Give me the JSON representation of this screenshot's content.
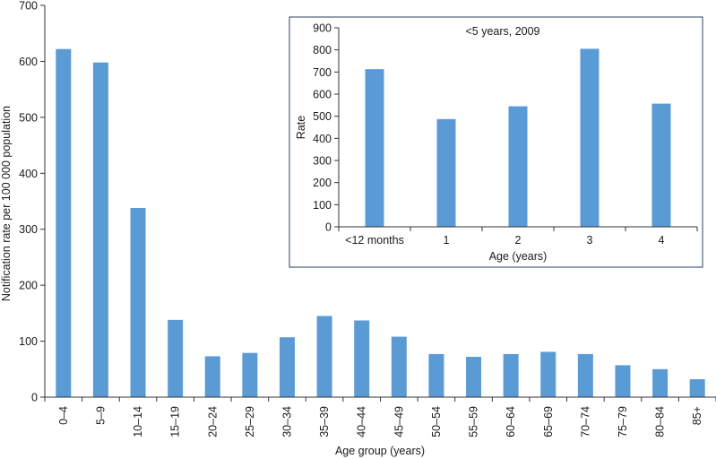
{
  "chart_data": [
    {
      "type": "bar",
      "title": "",
      "xlabel": "Age group (years)",
      "ylabel": "Notification rate per 100 000 population",
      "ylim": [
        0,
        700
      ],
      "yticks": [
        0,
        100,
        200,
        300,
        400,
        500,
        600,
        700
      ],
      "grid": false,
      "color": "#5b9bd5",
      "categories": [
        "0–4",
        "5–9",
        "10–14",
        "15–19",
        "20–24",
        "25–29",
        "30–34",
        "35–39",
        "40–44",
        "45–49",
        "50–54",
        "55–59",
        "60–64",
        "65–69",
        "70–74",
        "75–79",
        "80–84",
        "85+"
      ],
      "values": [
        622,
        598,
        338,
        138,
        73,
        79,
        107,
        145,
        137,
        108,
        77,
        72,
        77,
        81,
        77,
        57,
        50,
        32
      ]
    },
    {
      "type": "bar",
      "title": "<5 years, 2009",
      "xlabel": "Age (years)",
      "ylabel": "Rate",
      "ylim": [
        0,
        900
      ],
      "yticks": [
        0,
        100,
        200,
        300,
        400,
        500,
        600,
        700,
        800,
        900
      ],
      "grid": false,
      "color": "#5b9bd5",
      "categories": [
        "<12 months",
        "1",
        "2",
        "3",
        "4"
      ],
      "values": [
        713,
        487,
        545,
        805,
        557
      ]
    }
  ]
}
